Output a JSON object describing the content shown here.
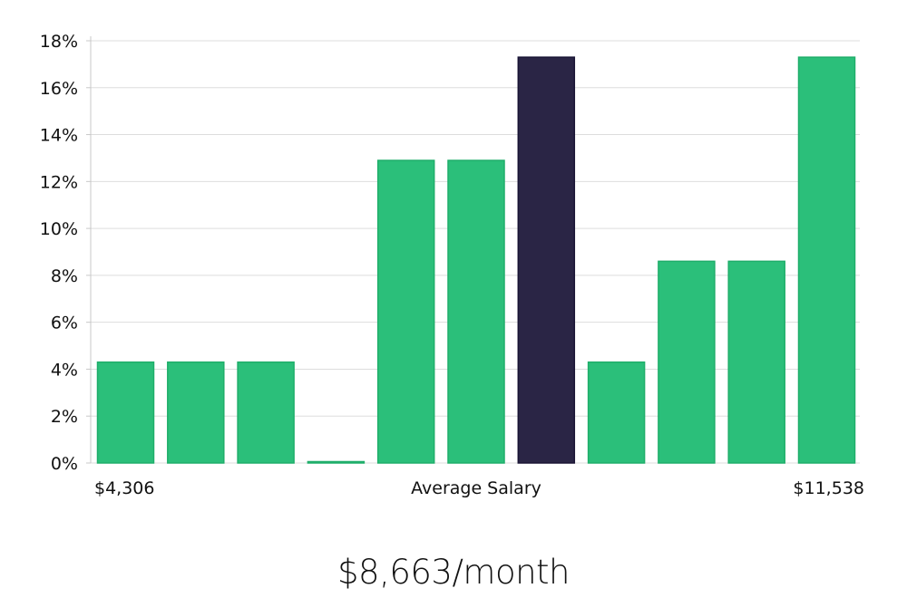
{
  "chart_data": {
    "type": "bar",
    "y_unit": "%",
    "ylim": [
      0,
      18
    ],
    "y_ticks": [
      0,
      2,
      4,
      6,
      8,
      10,
      12,
      14,
      16,
      18
    ],
    "grid": true,
    "values": [
      4.3,
      4.3,
      4.3,
      0,
      12.9,
      12.9,
      17.3,
      4.3,
      8.6,
      8.6,
      17.3
    ],
    "highlight_index": 6,
    "x_labels": {
      "min": "$4,306",
      "center": "Average Salary",
      "max": "$11,538"
    },
    "headline": "$8,663/month"
  },
  "colors": {
    "bar": "#2bbf7a",
    "bar_edge": "#1fae6a",
    "highlight": "#2a2545",
    "highlight_edge": "#1a1535",
    "grid": "#dddddd",
    "axis": "#c8c8c8",
    "text": "#111111"
  }
}
